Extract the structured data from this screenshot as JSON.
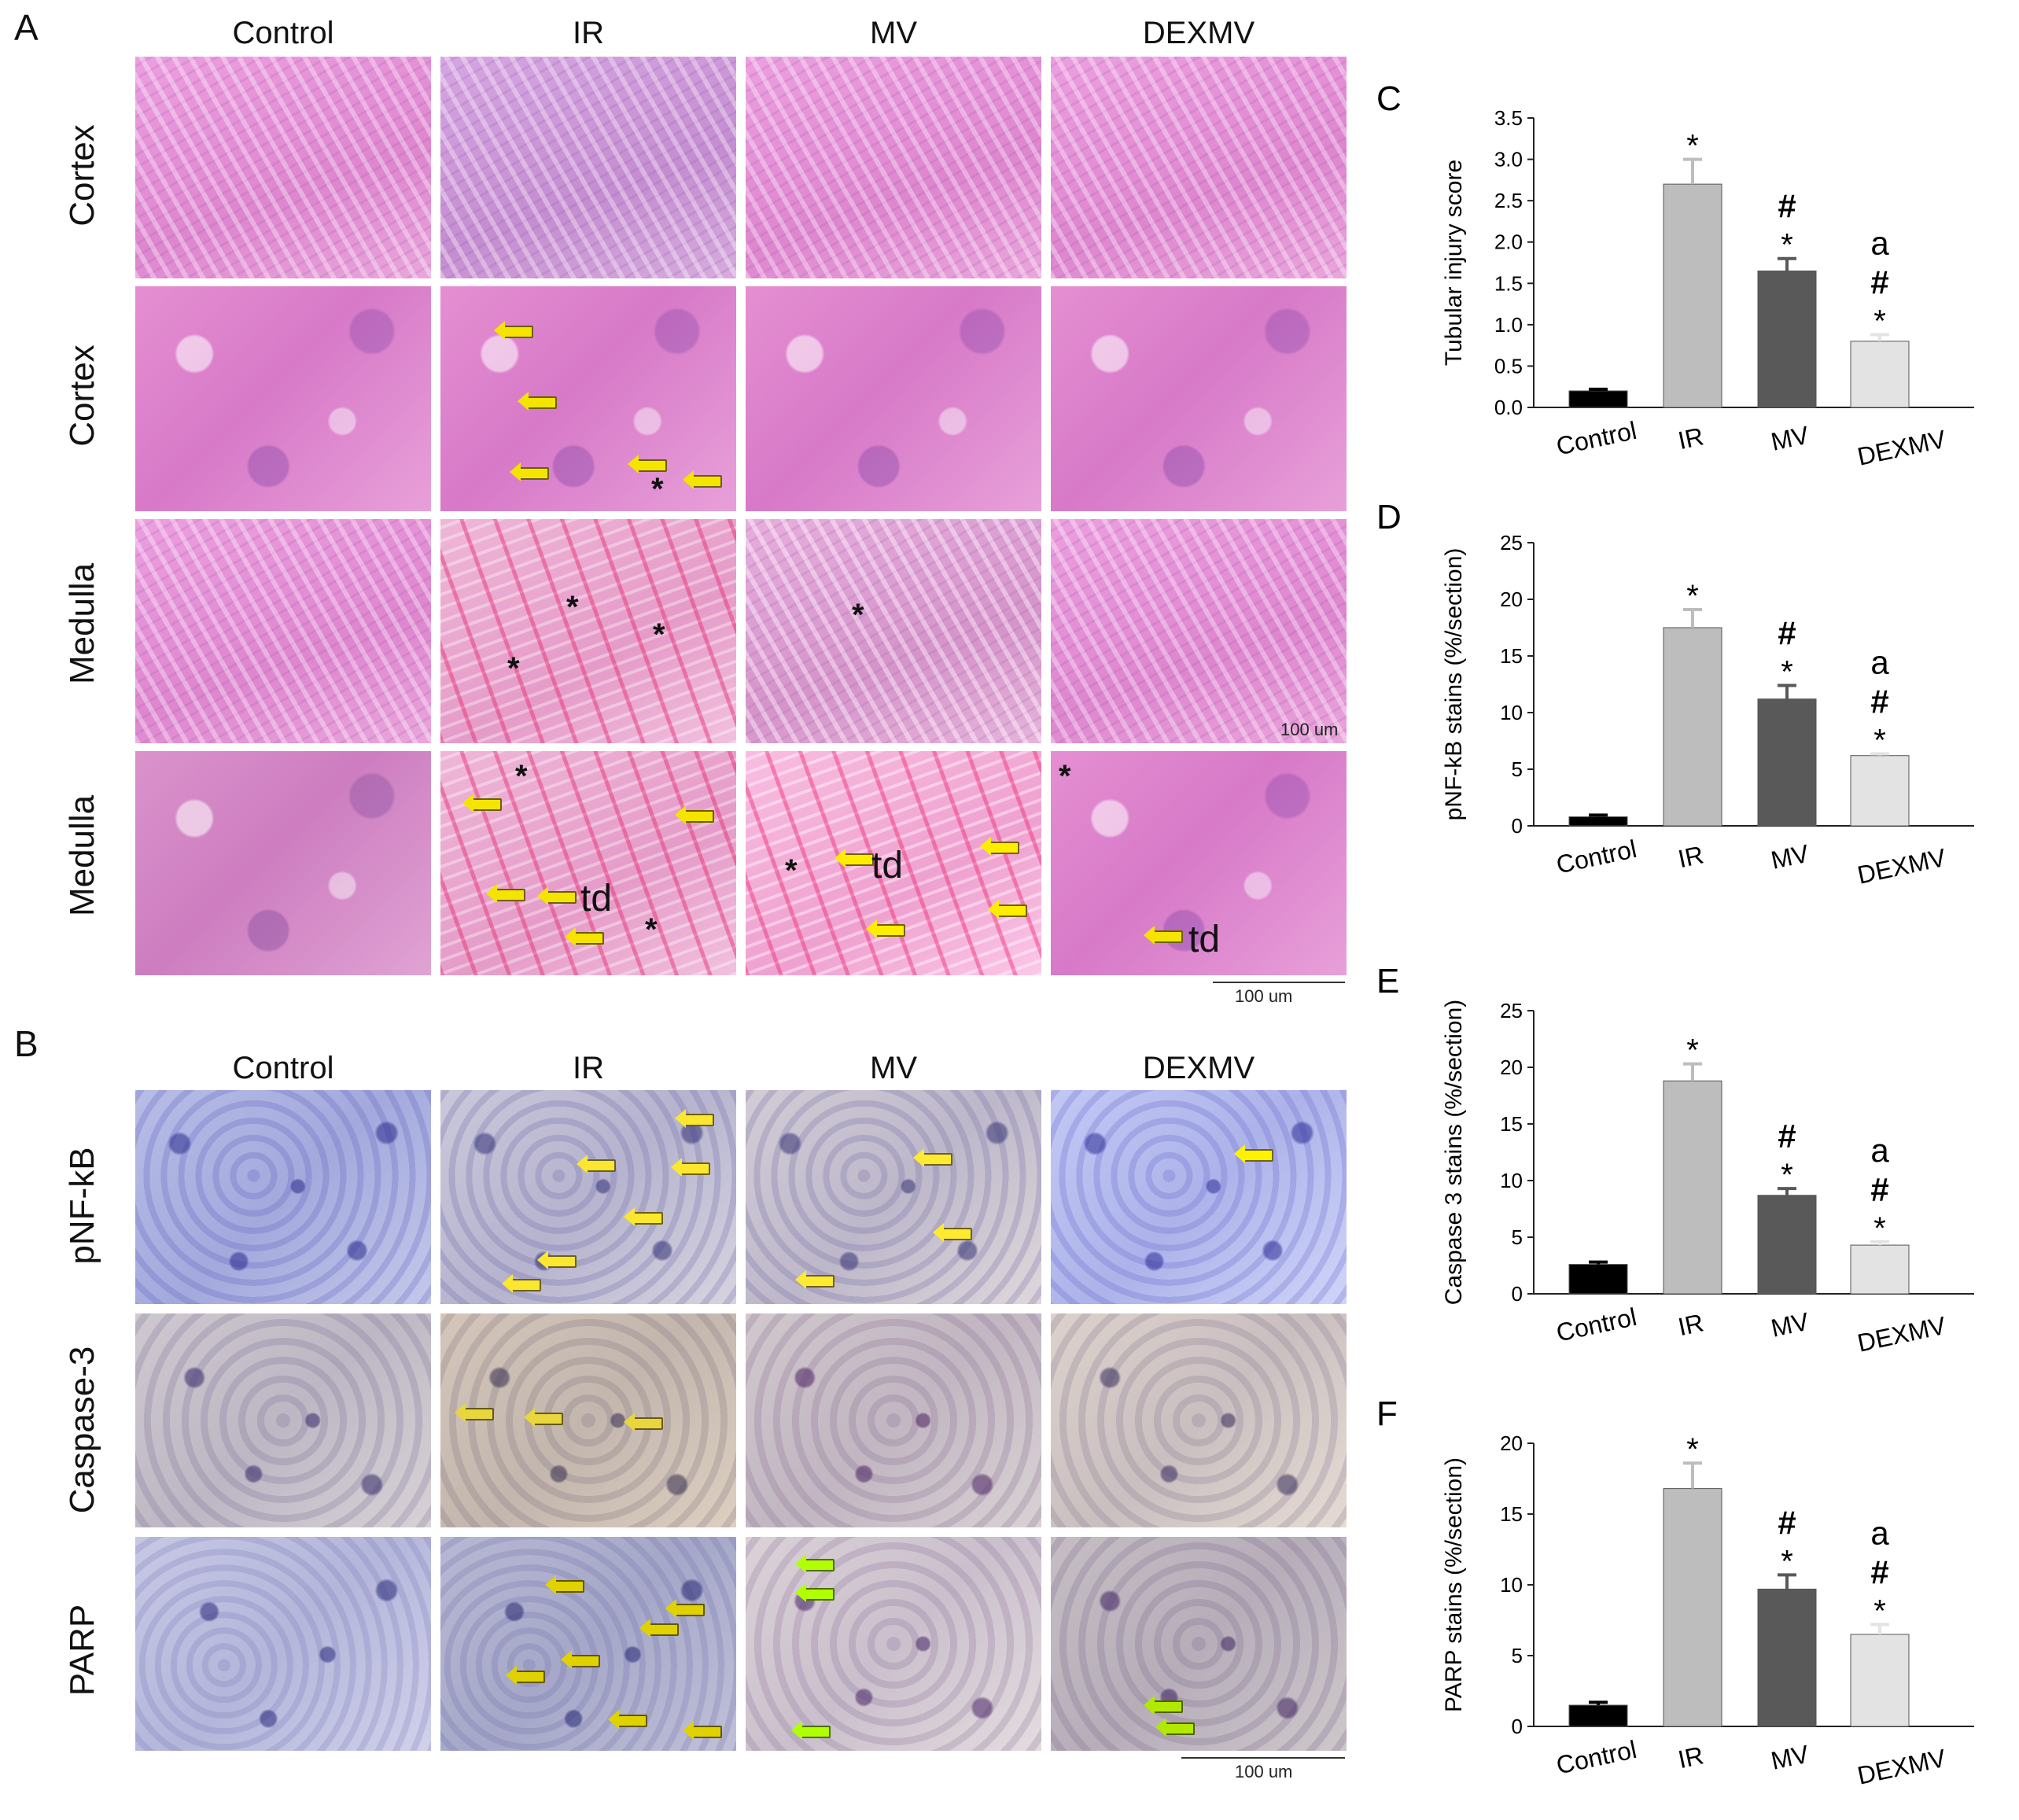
{
  "panel_a": {
    "letter": "A",
    "columns": [
      "Control",
      "IR",
      "MV",
      "DEXMV"
    ],
    "rows": [
      "Cortex",
      "Cortex",
      "Medulla",
      "Medulla"
    ],
    "scale_inner": "100 um",
    "scale_outer": "100 um",
    "td_label": "td",
    "star": "*"
  },
  "panel_b": {
    "letter": "B",
    "columns": [
      "Control",
      "IR",
      "MV",
      "DEXMV"
    ],
    "rows": [
      "pNF-kB",
      "Caspase-3",
      "PARP"
    ],
    "scale": "100 um"
  },
  "chart_data": [
    {
      "letter": "C",
      "type": "bar",
      "categories": [
        "Control",
        "IR",
        "MV",
        "DEXMV"
      ],
      "values": [
        0.2,
        2.7,
        1.65,
        0.8
      ],
      "errors": [
        0.02,
        0.3,
        0.15,
        0.08
      ],
      "annotations": [
        "",
        "*",
        "#\n*",
        "a\n#\n*"
      ],
      "ylabel": "Tubular injury score",
      "ylim": [
        0,
        3.5
      ],
      "yticks": [
        "0.0",
        "0.5",
        "1.0",
        "1.5",
        "2.0",
        "2.5",
        "3.0",
        "3.5"
      ],
      "colors": [
        "#000000",
        "#bdbdbd",
        "#595959",
        "#e3e3e3"
      ]
    },
    {
      "letter": "D",
      "type": "bar",
      "categories": [
        "Control",
        "IR",
        "MV",
        "DEXMV"
      ],
      "values": [
        0.8,
        17.5,
        11.2,
        6.2
      ],
      "errors": [
        0.15,
        1.6,
        1.2,
        0.15
      ],
      "annotations": [
        "",
        "*",
        "#\n*",
        "a\n#\n*"
      ],
      "ylabel": "pNF-kB stains (%/section)",
      "ylim": [
        0,
        25
      ],
      "yticks": [
        "0",
        "5",
        "10",
        "15",
        "20",
        "25"
      ],
      "colors": [
        "#000000",
        "#bdbdbd",
        "#595959",
        "#e3e3e3"
      ]
    },
    {
      "letter": "E",
      "type": "bar",
      "categories": [
        "Control",
        "IR",
        "MV",
        "DEXMV"
      ],
      "values": [
        2.6,
        18.8,
        8.7,
        4.3
      ],
      "errors": [
        0.2,
        1.5,
        0.6,
        0.3
      ],
      "annotations": [
        "",
        "*",
        "#\n*",
        "a\n#\n*"
      ],
      "ylabel": "Caspase 3 stains (%/section)",
      "ylim": [
        0,
        25
      ],
      "yticks": [
        "0",
        "5",
        "10",
        "15",
        "20",
        "25"
      ],
      "colors": [
        "#000000",
        "#bdbdbd",
        "#595959",
        "#e3e3e3"
      ]
    },
    {
      "letter": "F",
      "type": "bar",
      "categories": [
        "Control",
        "IR",
        "MV",
        "DEXMV"
      ],
      "values": [
        1.5,
        16.8,
        9.7,
        6.5
      ],
      "errors": [
        0.2,
        1.8,
        1.0,
        0.7
      ],
      "annotations": [
        "",
        "*",
        "#\n*",
        "a\n#\n*"
      ],
      "ylabel": "PARP stains (%/section)",
      "ylim": [
        0,
        20
      ],
      "yticks": [
        "0",
        "5",
        "10",
        "15",
        "20"
      ],
      "colors": [
        "#000000",
        "#bdbdbd",
        "#595959",
        "#e3e3e3"
      ]
    }
  ]
}
